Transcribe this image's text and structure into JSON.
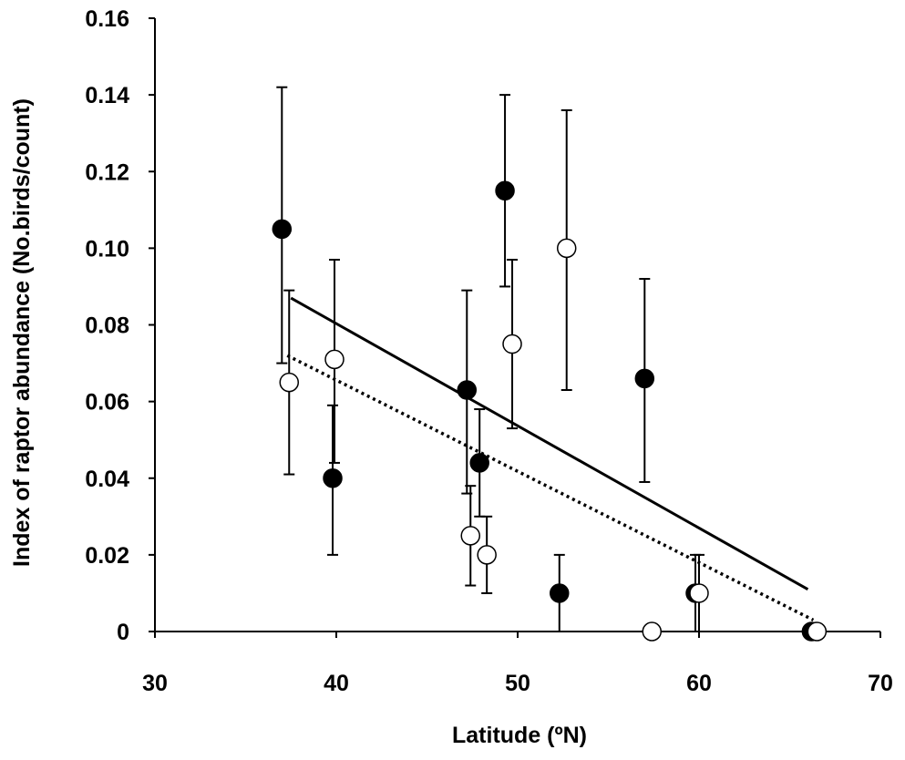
{
  "chart_data": {
    "type": "scatter",
    "title": "",
    "xlabel": "Latitude (ºN)",
    "ylabel": "Index of raptor abundance (No.birds/count)",
    "xlim": [
      30,
      70
    ],
    "ylim": [
      0,
      0.16
    ],
    "x_ticks": [
      "30",
      "40",
      "50",
      "60",
      "70"
    ],
    "y_ticks": [
      "0",
      "0.02",
      "0.04",
      "0.06",
      "0.08",
      "0.10",
      "0.12",
      "0.14",
      "0.16"
    ],
    "grid": false,
    "series": [
      {
        "marker": "filled-circle",
        "points": [
          {
            "x": 37.0,
            "y": 0.105,
            "err_low": 0.07,
            "err_high": 0.142
          },
          {
            "x": 39.8,
            "y": 0.04,
            "err_low": 0.02,
            "err_high": 0.059
          },
          {
            "x": 47.2,
            "y": 0.063,
            "err_low": 0.036,
            "err_high": 0.089
          },
          {
            "x": 47.9,
            "y": 0.044,
            "err_low": 0.03,
            "err_high": 0.058
          },
          {
            "x": 49.3,
            "y": 0.115,
            "err_low": 0.09,
            "err_high": 0.14
          },
          {
            "x": 52.3,
            "y": 0.01,
            "err_low": 0.0,
            "err_high": 0.02
          },
          {
            "x": 57.0,
            "y": 0.066,
            "err_low": 0.039,
            "err_high": 0.092
          },
          {
            "x": 59.8,
            "y": 0.01,
            "err_low": 0.0,
            "err_high": 0.02
          },
          {
            "x": 66.2,
            "y": 0.0,
            "err_low": 0.0,
            "err_high": 0.0
          }
        ],
        "trend": {
          "style": "solid",
          "x": [
            37.5,
            66.0
          ],
          "y": [
            0.087,
            0.011
          ]
        }
      },
      {
        "marker": "open-circle",
        "points": [
          {
            "x": 37.4,
            "y": 0.065,
            "err_low": 0.041,
            "err_high": 0.089
          },
          {
            "x": 39.9,
            "y": 0.071,
            "err_low": 0.044,
            "err_high": 0.097
          },
          {
            "x": 47.4,
            "y": 0.025,
            "err_low": 0.012,
            "err_high": 0.038
          },
          {
            "x": 48.3,
            "y": 0.02,
            "err_low": 0.01,
            "err_high": 0.03
          },
          {
            "x": 49.7,
            "y": 0.075,
            "err_low": 0.053,
            "err_high": 0.097
          },
          {
            "x": 52.7,
            "y": 0.1,
            "err_low": 0.063,
            "err_high": 0.136
          },
          {
            "x": 57.4,
            "y": 0.0,
            "err_low": 0.0,
            "err_high": 0.0
          },
          {
            "x": 60.0,
            "y": 0.01,
            "err_low": 0.0,
            "err_high": 0.02
          },
          {
            "x": 66.5,
            "y": 0.0,
            "err_low": 0.0,
            "err_high": 0.0
          }
        ],
        "trend": {
          "style": "dotted",
          "x": [
            37.3,
            66.3
          ],
          "y": [
            0.072,
            0.003
          ]
        }
      }
    ]
  }
}
